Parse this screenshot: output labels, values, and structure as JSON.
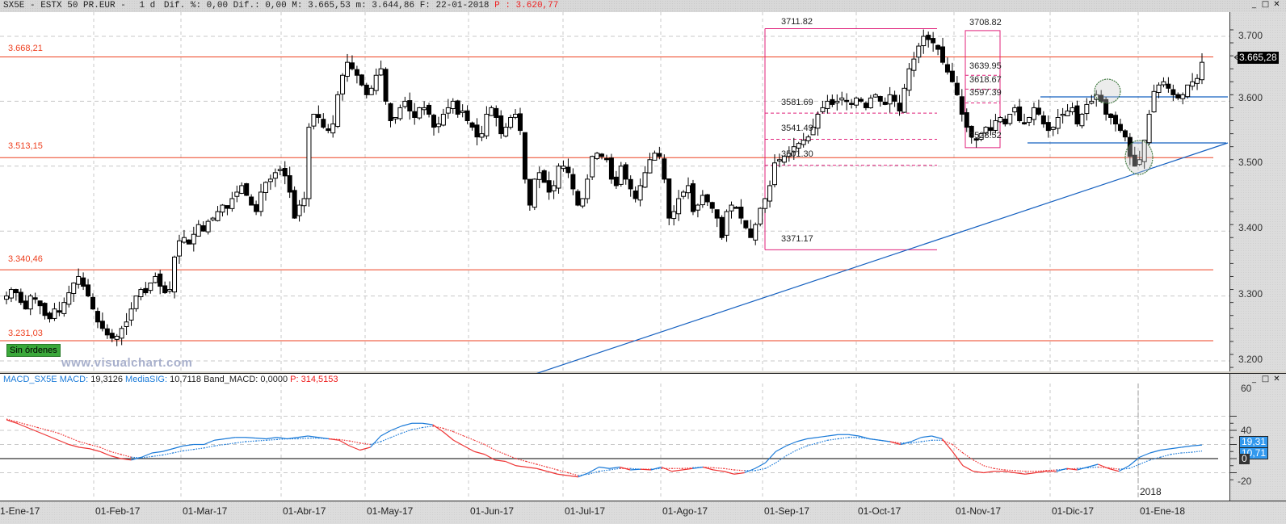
{
  "window": {
    "title_symbol": "SX5E - ESTX 50 PR.EUR -",
    "title_period": "1 d",
    "title_stats": "Dif. %: 0,00 Dif.: 0,00 M: 3.665,53 m: 3.644,86 F: 22-01-2018",
    "title_p": "P : 3.620,77",
    "buttons": {
      "minimize": "_",
      "maximize": "□",
      "close": "✕"
    }
  },
  "price_panel": {
    "last_price_tag": "3.665,28",
    "orders_badge": "Sin órdenes",
    "watermark": "www.visualchart.com",
    "y_ticks": [
      "3.700",
      "3.600",
      "3.500",
      "3.400",
      "3.300",
      "3.200"
    ],
    "horizontal_levels": [
      {
        "label": "3.668,21",
        "value": 3668.21
      },
      {
        "label": "3.513,15",
        "value": 3513.15
      },
      {
        "label": "3.340,46",
        "value": 3340.46
      },
      {
        "label": "3.231,03",
        "value": 3231.03
      }
    ],
    "fib_left": {
      "high": "3711.82",
      "l1": "3581.69",
      "l2": "3541.49",
      "l3": "3501.30",
      "low": "3371.17"
    },
    "fib_right": {
      "high": "3708.82",
      "l1": "3639.95",
      "l2": "3618.67",
      "l3": "3597.39",
      "low": "3528.52"
    }
  },
  "macd_panel": {
    "name": "MACD_SX5E",
    "macd_label": "MACD:",
    "macd_value": "19,3126",
    "sig_label": "MediaSIG:",
    "sig_value": "10,7118",
    "band_label": "Band_MACD:",
    "band_value": "0,0000",
    "p_label": "P:",
    "p_value": "314,5153",
    "y_ticks": [
      "60",
      "40",
      "0",
      "-20"
    ],
    "tags": {
      "macd": "19,31",
      "sig": "10,71",
      "zero": "0"
    },
    "year_marker": "2018"
  },
  "x_axis": {
    "labels": [
      "1-Ene-17",
      "01-Feb-17",
      "01-Mar-17",
      "01-Abr-17",
      "01-May-17",
      "01-Jun-17",
      "01-Jul-17",
      "01-Ago-17",
      "01-Sep-17",
      "01-Oct-17",
      "01-Nov-17",
      "01-Dic-17",
      "01-Ene-18"
    ]
  },
  "colors": {
    "level_line": "#ee4020",
    "fib": "#e0207a",
    "trendline": "#1560c0",
    "macd_up": "#1a7ad8",
    "macd_down": "#ee3333",
    "circle": "#2a6a2a"
  },
  "chart_data": [
    {
      "type": "candlestick",
      "title": "SX5E - ESTX 50 PR.EUR - 1 d",
      "xlabel": "",
      "ylabel": "",
      "ylim": [
        3185,
        3725
      ],
      "grid": true,
      "x_range": [
        "2017-01-02",
        "2018-01-22"
      ],
      "close_series_approx": [
        3300,
        3310,
        3305,
        3290,
        3280,
        3300,
        3295,
        3285,
        3270,
        3265,
        3280,
        3275,
        3290,
        3305,
        3320,
        3330,
        3315,
        3300,
        3280,
        3260,
        3250,
        3240,
        3235,
        3238,
        3250,
        3260,
        3280,
        3300,
        3310,
        3305,
        3320,
        3330,
        3315,
        3305,
        3310,
        3360,
        3385,
        3390,
        3380,
        3395,
        3410,
        3400,
        3415,
        3420,
        3430,
        3440,
        3435,
        3450,
        3460,
        3470,
        3455,
        3440,
        3430,
        3460,
        3475,
        3480,
        3490,
        3495,
        3485,
        3460,
        3420,
        3440,
        3450,
        3560,
        3580,
        3575,
        3560,
        3555,
        3565,
        3610,
        3640,
        3660,
        3650,
        3640,
        3625,
        3610,
        3620,
        3640,
        3650,
        3600,
        3570,
        3575,
        3590,
        3600,
        3585,
        3575,
        3590,
        3590,
        3580,
        3560,
        3565,
        3580,
        3590,
        3600,
        3580,
        3585,
        3570,
        3560,
        3545,
        3550,
        3580,
        3590,
        3575,
        3550,
        3560,
        3575,
        3580,
        3555,
        3480,
        3440,
        3480,
        3490,
        3475,
        3460,
        3470,
        3500,
        3500,
        3490,
        3465,
        3440,
        3450,
        3480,
        3515,
        3520,
        3515,
        3510,
        3480,
        3470,
        3500,
        3480,
        3465,
        3450,
        3470,
        3490,
        3510,
        3520,
        3515,
        3480,
        3420,
        3430,
        3450,
        3460,
        3470,
        3430,
        3440,
        3455,
        3445,
        3435,
        3420,
        3390,
        3430,
        3440,
        3435,
        3420,
        3405,
        3390,
        3410,
        3435,
        3450,
        3470,
        3505,
        3510,
        3515,
        3520,
        3530,
        3535,
        3540,
        3545,
        3560,
        3580,
        3590,
        3600,
        3595,
        3600,
        3605,
        3600,
        3595,
        3605,
        3600,
        3590,
        3605,
        3610,
        3600,
        3595,
        3610,
        3600,
        3585,
        3620,
        3650,
        3665,
        3685,
        3700,
        3695,
        3690,
        3680,
        3660,
        3645,
        3630,
        3610,
        3580,
        3560,
        3545,
        3540,
        3550,
        3560,
        3555,
        3570,
        3575,
        3565,
        3580,
        3590,
        3570,
        3565,
        3575,
        3590,
        3580,
        3565,
        3555,
        3560,
        3575,
        3580,
        3585,
        3590,
        3565,
        3580,
        3595,
        3600,
        3610,
        3600,
        3580,
        3575,
        3565,
        3555,
        3545,
        3515,
        3500,
        3510,
        3540,
        3580,
        3615,
        3625,
        3630,
        3620,
        3610,
        3605,
        3610,
        3625,
        3630,
        3635,
        3660
      ]
    },
    {
      "type": "line",
      "title": "MACD_SX5E",
      "ylim": [
        -30,
        65
      ],
      "series": [
        {
          "name": "MACD",
          "values": [
            55,
            50,
            44,
            38,
            32,
            26,
            20,
            16,
            14,
            10,
            4,
            0,
            -2,
            2,
            8,
            10,
            14,
            18,
            20,
            20,
            26,
            28,
            30,
            30,
            29,
            28,
            30,
            28,
            30,
            32,
            30,
            28,
            26,
            18,
            12,
            16,
            32,
            40,
            46,
            50,
            50,
            48,
            38,
            26,
            18,
            10,
            6,
            -2,
            -4,
            -10,
            -12,
            -14,
            -18,
            -22,
            -24,
            -26,
            -20,
            -12,
            -14,
            -12,
            -16,
            -15,
            -16,
            -12,
            -18,
            -16,
            -14,
            -12,
            -16,
            -18,
            -22,
            -20,
            -14,
            -6,
            10,
            18,
            24,
            28,
            30,
            32,
            34,
            34,
            32,
            28,
            26,
            24,
            20,
            24,
            30,
            32,
            28,
            10,
            -10,
            -18,
            -20,
            -18,
            -18,
            -20,
            -22,
            -20,
            -18,
            -18,
            -14,
            -16,
            -12,
            -8,
            -14,
            -18,
            -10,
            2,
            8,
            12,
            14,
            16,
            18,
            19.31
          ]
        },
        {
          "name": "MediaSIG",
          "values": [
            56,
            52,
            48,
            44,
            40,
            36,
            30,
            24,
            20,
            16,
            10,
            6,
            2,
            1,
            3,
            5,
            8,
            11,
            13,
            15,
            18,
            20,
            22,
            24,
            25,
            26,
            27,
            28,
            28,
            29,
            29,
            28,
            27,
            25,
            22,
            20,
            24,
            30,
            36,
            41,
            44,
            46,
            43,
            38,
            32,
            26,
            20,
            12,
            6,
            0,
            -4,
            -8,
            -12,
            -16,
            -20,
            -24,
            -22,
            -18,
            -16,
            -14,
            -14,
            -15,
            -15,
            -14,
            -14,
            -14,
            -13,
            -12,
            -13,
            -14,
            -16,
            -17,
            -17,
            -14,
            -6,
            4,
            12,
            18,
            22,
            26,
            28,
            30,
            30,
            28,
            26,
            24,
            22,
            22,
            24,
            26,
            26,
            20,
            8,
            -2,
            -10,
            -14,
            -16,
            -17,
            -18,
            -18,
            -17,
            -16,
            -15,
            -14,
            -13,
            -12,
            -13,
            -15,
            -14,
            -8,
            -2,
            2,
            6,
            8,
            9,
            10.71
          ]
        }
      ],
      "zero_line": 0
    }
  ]
}
